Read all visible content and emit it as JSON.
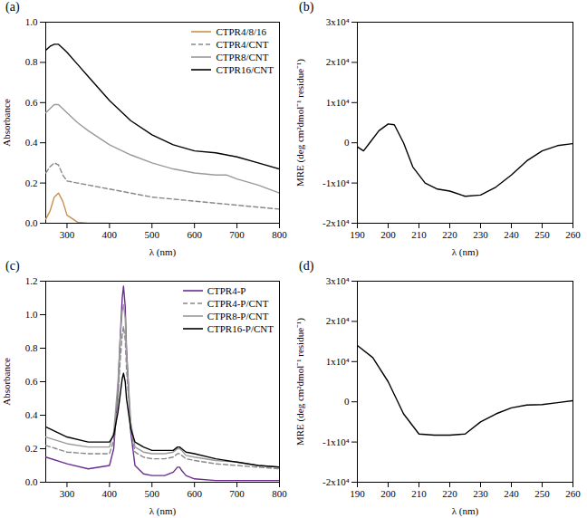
{
  "chart_data": [
    {
      "type": "line",
      "title": "(a)",
      "x_label": "λ (nm)",
      "y_label": "Absorbance",
      "x": [
        250,
        260,
        270,
        280,
        290,
        300,
        325,
        350,
        400,
        450,
        500,
        550,
        600,
        650,
        675,
        700,
        750,
        800
      ],
      "xlim": [
        250,
        800
      ],
      "xticks": [
        300,
        400,
        500,
        600,
        700,
        800
      ],
      "ylim": [
        0,
        1
      ],
      "yticks": [
        {
          "value": 0,
          "label": "0.0"
        },
        0.2,
        0.4,
        0.6,
        0.8,
        {
          "value": 1,
          "label": "1.0"
        }
      ],
      "legend": "top-right",
      "series": [
        {
          "name": "CTPR4/8/16",
          "color": "#c8914a",
          "line_style": "solid",
          "values": [
            0.02,
            0.06,
            0.13,
            0.15,
            0.11,
            0.04,
            0.005,
            0,
            0,
            null,
            null,
            null,
            null,
            null,
            null,
            null,
            null,
            null
          ]
        },
        {
          "name": "CTPR4/CNT",
          "color": "#888888",
          "line_style": "dashed",
          "values": [
            0.25,
            0.28,
            0.3,
            0.29,
            0.24,
            0.21,
            0.2,
            0.19,
            0.17,
            0.15,
            0.13,
            0.12,
            0.11,
            0.1,
            0.095,
            0.09,
            0.08,
            0.07
          ]
        },
        {
          "name": "CTPR8/CNT",
          "color": "#9a9a9a",
          "line_style": "solid",
          "values": [
            0.55,
            0.57,
            0.59,
            0.59,
            0.57,
            0.55,
            0.5,
            0.46,
            0.39,
            0.34,
            0.3,
            0.27,
            0.25,
            0.24,
            0.24,
            0.22,
            0.19,
            0.15
          ]
        },
        {
          "name": "CTPR16/CNT",
          "color": "#000000",
          "line_style": "solid",
          "values": [
            0.86,
            0.88,
            0.89,
            0.89,
            0.87,
            0.85,
            0.79,
            0.73,
            0.61,
            0.51,
            0.44,
            0.39,
            0.36,
            0.35,
            0.34,
            0.33,
            0.3,
            0.27
          ]
        }
      ]
    },
    {
      "type": "line",
      "title": "(b)",
      "x_label": "λ (nm)",
      "y_label": "MRE (deg cm²dmol⁻¹ residue⁻¹)",
      "x": [
        190,
        192,
        194,
        197,
        200,
        202,
        205,
        208,
        212,
        216,
        220,
        225,
        230,
        235,
        240,
        245,
        250,
        255,
        260
      ],
      "values": [
        -1000,
        -2000,
        0,
        3000,
        4700,
        4500,
        0,
        -6000,
        -10000,
        -11500,
        -12000,
        -13300,
        -13000,
        -11000,
        -8000,
        -4500,
        -2000,
        -700,
        -200
      ],
      "color": "#000000",
      "xlim": [
        190,
        260
      ],
      "xticks": [
        190,
        200,
        210,
        220,
        230,
        240,
        250,
        260
      ],
      "ylim": [
        -20000,
        30000
      ],
      "yticks": [
        {
          "value": -20000,
          "label": "-2x10⁴"
        },
        {
          "value": -10000,
          "label": "-1x10⁴"
        },
        0,
        {
          "value": 10000,
          "label": "1x10⁴"
        },
        {
          "value": 20000,
          "label": "2x10⁴"
        },
        {
          "value": 30000,
          "label": "3x10⁴"
        }
      ]
    },
    {
      "type": "line",
      "title": "(c)",
      "x_label": "λ (nm)",
      "y_label": "Absorbance",
      "x": [
        250,
        300,
        350,
        400,
        410,
        420,
        425,
        430,
        433,
        437,
        440,
        450,
        460,
        480,
        500,
        530,
        550,
        560,
        565,
        570,
        580,
        600,
        650,
        700,
        750,
        800
      ],
      "xlim": [
        250,
        800
      ],
      "xticks": [
        300,
        400,
        500,
        600,
        700,
        800
      ],
      "ylim": [
        0,
        1.2
      ],
      "yticks": [
        {
          "value": 0,
          "label": "0.0"
        },
        0.2,
        0.4,
        0.6,
        0.8,
        {
          "value": 1,
          "label": "1.0"
        },
        1.2
      ],
      "legend": "top-right",
      "series": [
        {
          "name": "CTPR4-P",
          "color": "#6b2d8f",
          "line_style": "solid",
          "values": [
            0.15,
            0.11,
            0.08,
            0.1,
            0.2,
            0.55,
            0.85,
            1.1,
            1.17,
            1.05,
            0.8,
            0.3,
            0.1,
            0.05,
            0.04,
            0.04,
            0.06,
            0.09,
            0.09,
            0.07,
            0.04,
            0.02,
            0.01,
            0.01,
            0.01,
            0.01
          ]
        },
        {
          "name": "CTPR4-P/CNT",
          "color": "#888888",
          "line_style": "dashed",
          "values": [
            0.22,
            0.18,
            0.17,
            0.17,
            0.25,
            0.5,
            0.72,
            0.88,
            0.93,
            0.85,
            0.68,
            0.32,
            0.18,
            0.15,
            0.14,
            0.14,
            0.15,
            0.17,
            0.17,
            0.16,
            0.14,
            0.13,
            0.11,
            0.1,
            0.09,
            0.08
          ]
        },
        {
          "name": "CTPR8-P/CNT",
          "color": "#9a9a9a",
          "line_style": "solid",
          "values": [
            0.27,
            0.23,
            0.21,
            0.21,
            0.3,
            0.6,
            0.85,
            1.02,
            1.06,
            0.98,
            0.78,
            0.36,
            0.21,
            0.18,
            0.17,
            0.17,
            0.18,
            0.2,
            0.2,
            0.19,
            0.16,
            0.15,
            0.13,
            0.12,
            0.1,
            0.09
          ]
        },
        {
          "name": "CTPR16-P/CNT",
          "color": "#000000",
          "line_style": "solid",
          "values": [
            0.33,
            0.27,
            0.24,
            0.24,
            0.28,
            0.42,
            0.52,
            0.62,
            0.65,
            0.6,
            0.5,
            0.32,
            0.24,
            0.21,
            0.19,
            0.19,
            0.19,
            0.21,
            0.21,
            0.2,
            0.18,
            0.17,
            0.14,
            0.12,
            0.1,
            0.09
          ]
        }
      ]
    },
    {
      "type": "line",
      "title": "(d)",
      "x_label": "λ (nm)",
      "y_label": "MRE (deg cm²dmol⁻¹ residue⁻¹)",
      "x": [
        190,
        195,
        200,
        205,
        210,
        215,
        220,
        225,
        230,
        235,
        240,
        245,
        250,
        255,
        260
      ],
      "values": [
        14000,
        11000,
        5000,
        -3000,
        -8000,
        -8300,
        -8300,
        -8000,
        -5000,
        -3000,
        -1500,
        -800,
        -700,
        -200,
        300
      ],
      "color": "#000000",
      "xlim": [
        190,
        260
      ],
      "xticks": [
        190,
        200,
        210,
        220,
        230,
        240,
        250,
        260
      ],
      "ylim": [
        -20000,
        30000
      ],
      "yticks": [
        {
          "value": -20000,
          "label": "-2x10⁴"
        },
        {
          "value": -10000,
          "label": "-1x10⁴"
        },
        0,
        {
          "value": 10000,
          "label": "1x10⁴"
        },
        {
          "value": 20000,
          "label": "2x10⁴"
        },
        {
          "value": 30000,
          "label": "3x10⁴"
        }
      ]
    }
  ]
}
